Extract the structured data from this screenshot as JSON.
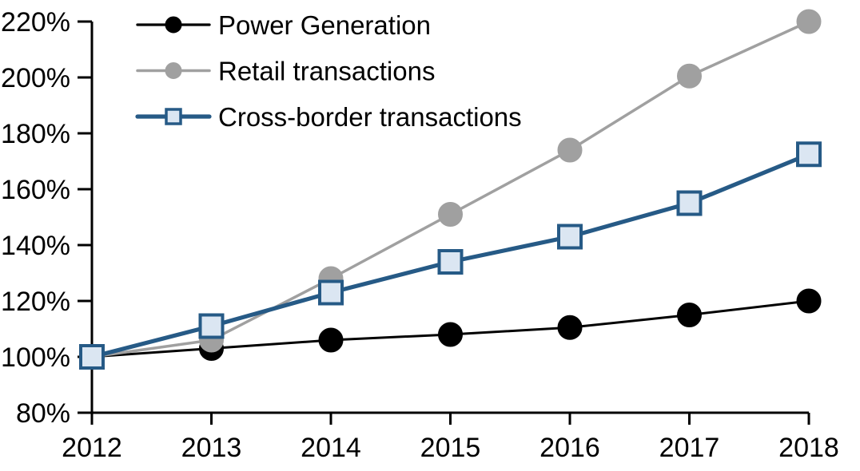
{
  "chart_data": {
    "type": "line",
    "title": "",
    "xlabel": "",
    "ylabel": "",
    "categories": [
      "2012",
      "2013",
      "2014",
      "2015",
      "2016",
      "2017",
      "2018"
    ],
    "y_axis": {
      "min": 80,
      "max": 220,
      "step": 20,
      "suffix": "%",
      "tick_labels": [
        "80%",
        "100%",
        "120%",
        "140%",
        "160%",
        "180%",
        "200%",
        "220%"
      ]
    },
    "grid": false,
    "legend_position": "top-left",
    "axis_color": "#000000",
    "background_color": "#ffffff",
    "series": [
      {
        "name": "Power Generation",
        "values": [
          100,
          103,
          106,
          108,
          110.5,
          115,
          120
        ],
        "color": "#000000",
        "marker": "circle",
        "marker_fill": "#000000",
        "marker_stroke": "#000000",
        "line_width": 3
      },
      {
        "name": "Retail transactions",
        "values": [
          100,
          106,
          128,
          151,
          174,
          200.5,
          220
        ],
        "color": "#a0a0a0",
        "marker": "circle",
        "marker_fill": "#a0a0a0",
        "marker_stroke": "#a0a0a0",
        "line_width": 3.5
      },
      {
        "name": "Cross-border transactions",
        "values": [
          100,
          111,
          123,
          134,
          143,
          155,
          172.5
        ],
        "color": "#265a86",
        "marker": "square",
        "marker_fill": "#dbe6f2",
        "marker_stroke": "#265a86",
        "line_width": 5.2
      }
    ]
  }
}
